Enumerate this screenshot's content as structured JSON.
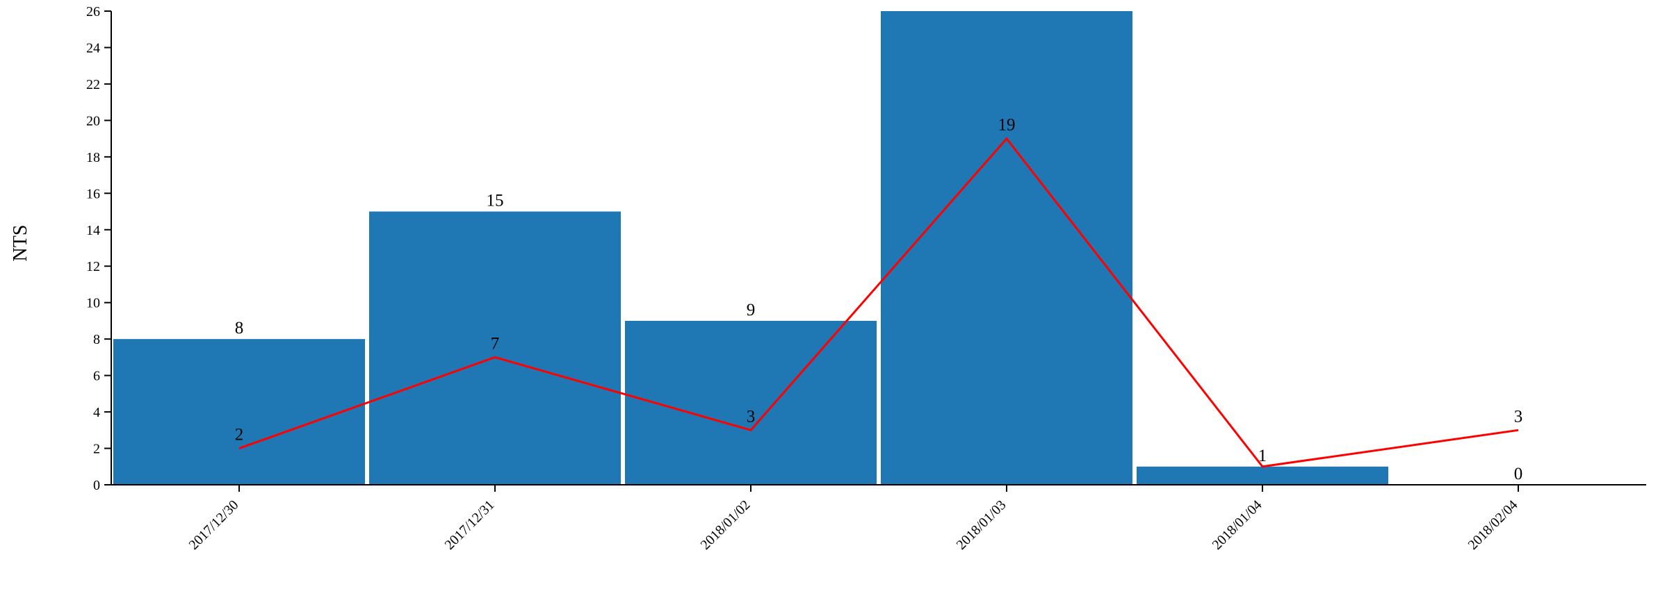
{
  "chart_data": {
    "type": "bar",
    "subtype": "bar-with-line-overlay",
    "categories": [
      "2017/12/30",
      "2017/12/31",
      "2018/01/02",
      "2018/01/03",
      "2018/01/04",
      "2018/02/04"
    ],
    "series": [
      {
        "name": "bars",
        "type": "bar",
        "values": [
          8,
          15,
          9,
          26,
          1,
          0
        ],
        "labels": [
          "8",
          "15",
          "9",
          "",
          "1",
          "0"
        ],
        "color": "#1f77b4"
      },
      {
        "name": "line",
        "type": "line",
        "values": [
          2,
          7,
          3,
          19,
          1,
          3
        ],
        "labels": [
          "2",
          "7",
          "3",
          "19",
          "",
          "3"
        ],
        "color": "#ff0000"
      }
    ],
    "title": "",
    "xlabel": "",
    "ylabel": "NTS",
    "ylim": [
      0,
      26
    ],
    "ytick_step": 2,
    "grid": false,
    "legend": false,
    "axis_color": "#000000"
  }
}
